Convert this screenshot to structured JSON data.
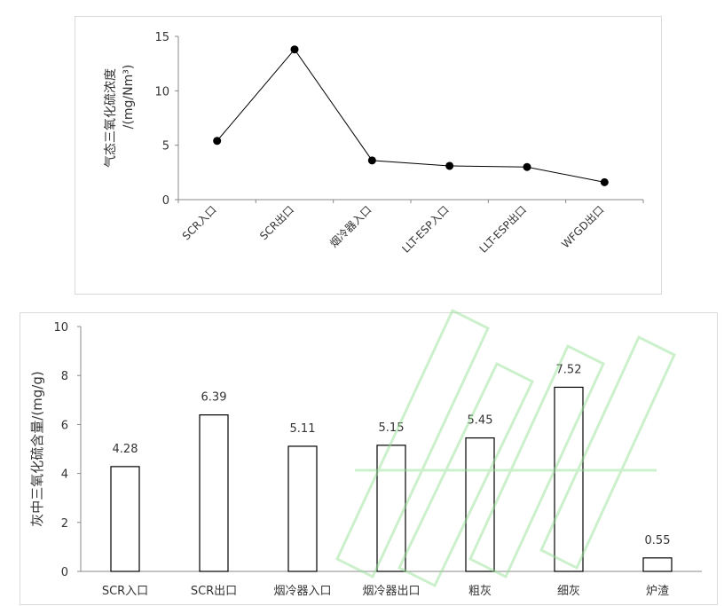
{
  "chart_data": [
    {
      "type": "line",
      "categories": [
        "SCR入口",
        "SCR出口",
        "烟冷器入口",
        "LLT-ESP入口",
        "LLT-ESP出口",
        "WFGD出口"
      ],
      "series": [
        {
          "values": [
            5.4,
            13.8,
            3.6,
            3.1,
            3.0,
            1.6
          ]
        }
      ],
      "ylabel": "气态三氧化硫浓度",
      "ylabel_unit": "/(mg/Nm³)",
      "yticks": [
        "0",
        "5",
        "10",
        "15"
      ],
      "ylim": [
        0,
        15
      ],
      "marker": "circle",
      "color": "#000000",
      "grid": false
    },
    {
      "type": "bar",
      "categories": [
        "SCR入口",
        "SCR出口",
        "烟冷器入口",
        "烟冷器出口",
        "粗灰",
        "细灰",
        "炉渣"
      ],
      "values": [
        4.28,
        6.39,
        5.11,
        5.15,
        5.45,
        7.52,
        0.55
      ],
      "data_labels": [
        "4.28",
        "6.39",
        "5.11",
        "5.15",
        "5.45",
        "7.52",
        "0.55"
      ],
      "ylabel": "灰中三氧化硫含量/(mg/g)",
      "yticks": [
        "0",
        "2",
        "4",
        "6",
        "8",
        "10"
      ],
      "ylim": [
        0,
        10
      ],
      "bar_fill": "#ffffff",
      "bar_stroke": "#000000",
      "grid": false
    }
  ]
}
